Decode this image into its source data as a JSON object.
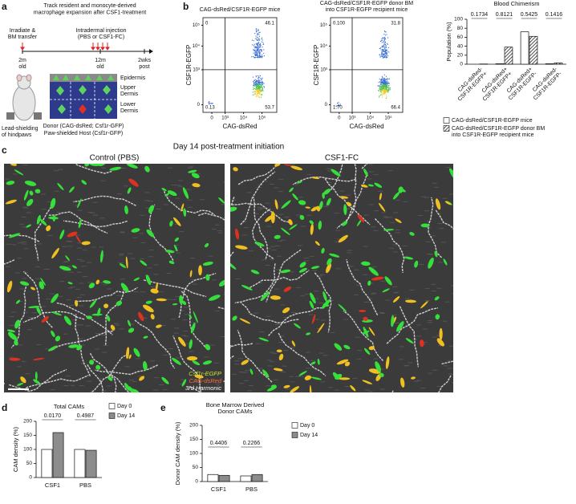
{
  "panel_labels": [
    "a",
    "b",
    "c",
    "d",
    "e"
  ],
  "panel_a": {
    "title_lines": [
      "Track resident and monocyte-derived",
      "macrophage expansion after CSF1-treatment"
    ],
    "irradiate_lines": [
      "Irradiate &",
      "BM transfer"
    ],
    "injection_lines": [
      "Intradermal injection",
      "(PBS or CSF1-FC)"
    ],
    "timepoints": [
      [
        "2m",
        "old"
      ],
      [
        "12m",
        "old"
      ],
      [
        "2wks",
        "post"
      ]
    ],
    "layers": [
      [
        "Epidermis"
      ],
      [
        "Upper",
        "Dermis"
      ],
      [
        "Lower",
        "Dermis"
      ]
    ],
    "shielding_lines": [
      "Lead-shielding",
      "of hindpaws"
    ],
    "donor": "Donor (CAG-dsRed; Csf1r-GFP)",
    "host": "Paw-shielded Host (Csf1r-GFP)"
  },
  "flow_plots": [
    {
      "title_lines": [
        "CAG-dsRed/CSF1R-EGFP mice"
      ],
      "quadrants": [
        "0",
        "46.1",
        "0.13",
        "53.7"
      ],
      "y_label": "CSF1R-EGFP",
      "x_label": "CAG-dsRed",
      "yticks": [
        "0",
        "10³",
        "10⁴",
        "10⁵"
      ],
      "xticks": [
        "0",
        "10³",
        "10⁴",
        "10⁵"
      ]
    },
    {
      "title_lines": [
        "CAG-dsRed/CSF1R-EGFP donor BM",
        "into CSF1R-EGFP recipient mice"
      ],
      "quadrants": [
        "0.100",
        "31.8",
        "1.70",
        "66.4"
      ],
      "y_label": "CSF1R-EGFP",
      "x_label": "CAG-dsRed",
      "yticks": [
        "0",
        "10³",
        "10⁴",
        "10⁵"
      ],
      "xticks": [
        "0",
        "10³",
        "10⁴",
        "10⁵"
      ]
    }
  ],
  "panel_c": {
    "title": "Day 14 post-treatment initiation",
    "images": [
      "Control (PBS)",
      "CSF1-FC"
    ],
    "legend": [
      "Csf1r-EGFP",
      "CAG-dsRed",
      "3rd Harmonic"
    ]
  },
  "chart_data": [
    {
      "type": "bar",
      "title_lines": [
        "Blood Chimerism"
      ],
      "y_label": "Population (%)",
      "categories": [
        [
          "CAG-dsRed-",
          "CSF1R-EGFP+"
        ],
        [
          "CAG-dsRed+",
          "CSF1R-EGFP+"
        ],
        [
          "CAG-dsRed+",
          "CSF1R-EGFP-"
        ],
        [
          "CAG-dsRed-",
          "CSF1R-EGFP-"
        ]
      ],
      "series": [
        {
          "name": [
            "CAG-dsRed/CSF1R-EGFP mice"
          ],
          "color": "#ffffff",
          "values": [
            0,
            1,
            72,
            1
          ]
        },
        {
          "name": [
            "CAG-dsRed/CSF1R-EGFP donor BM",
            "into CSF1R-EGFP recipient mice"
          ],
          "color": "#333333",
          "pattern": "hatch",
          "values": [
            0.5,
            38,
            62,
            3
          ]
        }
      ],
      "annotations": [
        "0.1734",
        "0.8121",
        "0.5425",
        "0.1416"
      ],
      "ylim": [
        0,
        100
      ],
      "yticks": [
        0,
        20,
        40,
        60,
        80,
        100
      ],
      "grid": false,
      "rotate_labels": true
    },
    {
      "type": "bar",
      "title_lines": [
        "Total CAMs"
      ],
      "y_label": "CAM density (%)",
      "categories": [
        [
          "CSF1"
        ],
        [
          "PBS"
        ]
      ],
      "series": [
        {
          "name": [
            "Day 0"
          ],
          "color": "#ffffff",
          "values": [
            100,
            100
          ]
        },
        {
          "name": [
            "Day 14"
          ],
          "color": "#8c8c8c",
          "values": [
            160,
            97
          ]
        }
      ],
      "annotations": [
        "0.0170",
        "0.4987"
      ],
      "ylim": [
        0,
        200
      ],
      "yticks": [
        0,
        50,
        100,
        150,
        200
      ],
      "grid": false,
      "rotate_labels": false
    },
    {
      "type": "bar",
      "title_lines": [
        "Bone Marrow Derived",
        "Donor CAMs"
      ],
      "y_label": "Donor CAM density (%)",
      "categories": [
        [
          "CSF1"
        ],
        [
          "PBS"
        ]
      ],
      "series": [
        {
          "name": [
            "Day 0"
          ],
          "color": "#ffffff",
          "values": [
            25,
            20
          ]
        },
        {
          "name": [
            "Day 14"
          ],
          "color": "#8c8c8c",
          "values": [
            22,
            25
          ]
        }
      ],
      "annotations": [
        "0.4406",
        "0.2266"
      ],
      "ylim": [
        0,
        200
      ],
      "yticks": [
        0,
        50,
        100,
        150,
        200
      ],
      "grid": false,
      "rotate_labels": false
    }
  ]
}
